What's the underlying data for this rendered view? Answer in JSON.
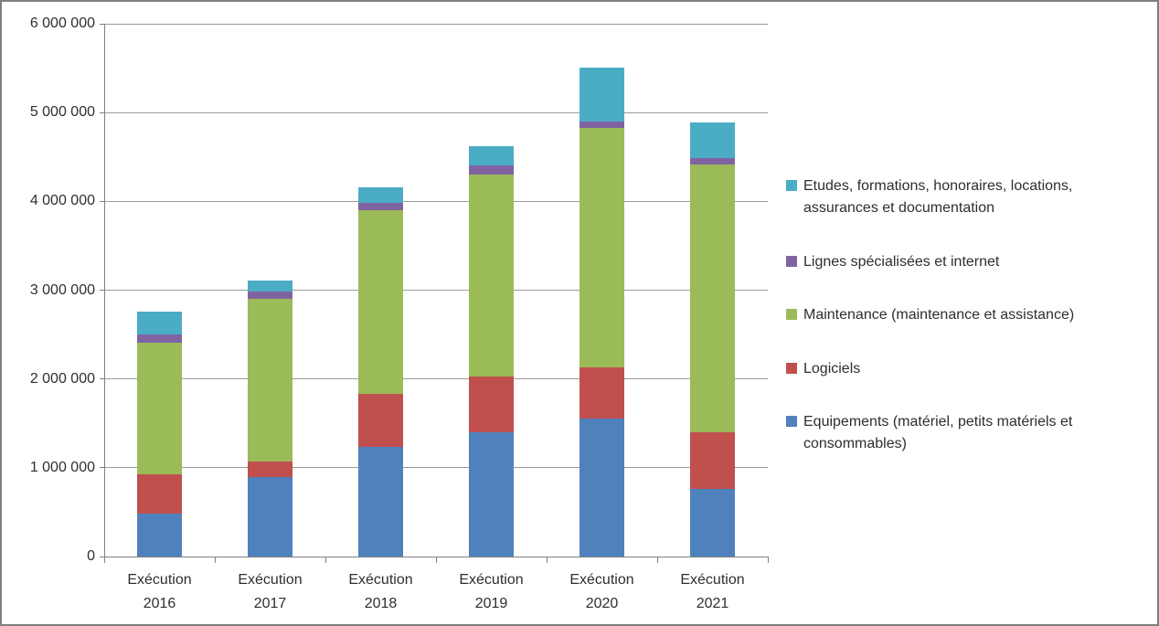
{
  "chart_data": {
    "type": "bar",
    "stacked": true,
    "title": "",
    "xlabel": "",
    "ylabel": "",
    "grid": true,
    "categories": [
      "Exécution 2016",
      "Exécution 2017",
      "Exécution 2018",
      "Exécution 2019",
      "Exécution 2020",
      "Exécution 2021"
    ],
    "series": [
      {
        "name": "Equipements (matériel, petits matériels et consommables)",
        "color": "#4F81BD",
        "values": [
          480000,
          900000,
          1240000,
          1400000,
          1550000,
          760000
        ]
      },
      {
        "name": "Logiciels",
        "color": "#C0504D",
        "values": [
          450000,
          170000,
          590000,
          630000,
          580000,
          640000
        ]
      },
      {
        "name": "Maintenance (maintenance et assistance)",
        "color": "#9BBB59",
        "values": [
          1480000,
          1830000,
          2070000,
          2270000,
          2700000,
          3020000
        ]
      },
      {
        "name": "Lignes spécialisées et internet",
        "color": "#8064A2",
        "values": [
          90000,
          85000,
          80000,
          100000,
          70000,
          70000
        ]
      },
      {
        "name": "Etudes, formations, honoraires, locations, assurances et documentation",
        "color": "#4BACC6",
        "values": [
          260000,
          125000,
          180000,
          220000,
          610000,
          400000
        ]
      }
    ],
    "y_axis": {
      "min": 0,
      "max": 6000000,
      "tick_values": [
        0,
        1000000,
        2000000,
        3000000,
        4000000,
        5000000,
        6000000
      ],
      "tick_labels": [
        "0",
        "1 000 000",
        "2 000 000",
        "3 000 000",
        "4 000 000",
        "5 000 000",
        "6 000 000"
      ]
    },
    "legend": {
      "position": "right",
      "order_top_to_bottom": [
        "Etudes, formations, honoraires, locations, assurances et documentation",
        "Lignes spécialisées et internet",
        "Maintenance (maintenance et assistance)",
        "Logiciels",
        "Equipements (matériel, petits matériels et consommables)"
      ]
    }
  }
}
